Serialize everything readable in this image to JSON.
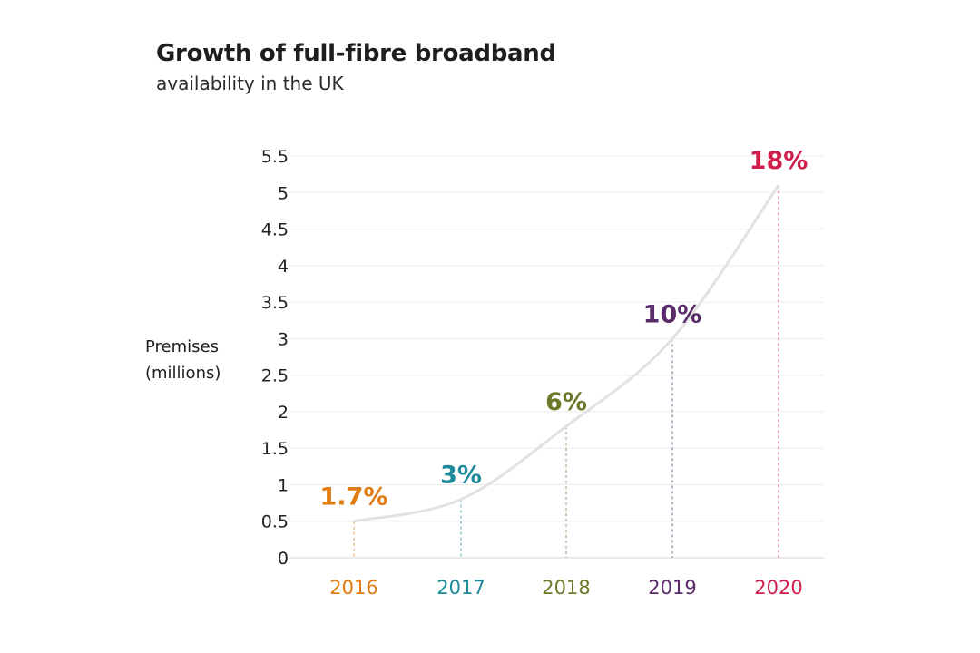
{
  "chart_data": {
    "type": "line",
    "title": "Growth of full-fibre broadband",
    "subtitle": "availability in the UK",
    "ylabel_lines": [
      "Premises",
      "(millions)"
    ],
    "xlabel": "",
    "ylim": [
      0,
      5.5
    ],
    "yticks": [
      "0",
      "0.5",
      "1",
      "1.5",
      "2",
      "2.5",
      "3",
      "3.5",
      "4",
      "4.5",
      "5",
      "5.5"
    ],
    "grid": true,
    "categories": [
      "2016",
      "2017",
      "2018",
      "2019",
      "2020"
    ],
    "values": [
      0.5,
      0.8,
      1.8,
      3.0,
      5.1
    ],
    "data_labels": [
      "1.7%",
      "3%",
      "6%",
      "10%",
      "18%"
    ],
    "colors": [
      "#e07c12",
      "#1f8a99",
      "#6b7a2a",
      "#5a2a6a",
      "#d01e4c"
    ],
    "line_color": "#e2e2e2"
  }
}
